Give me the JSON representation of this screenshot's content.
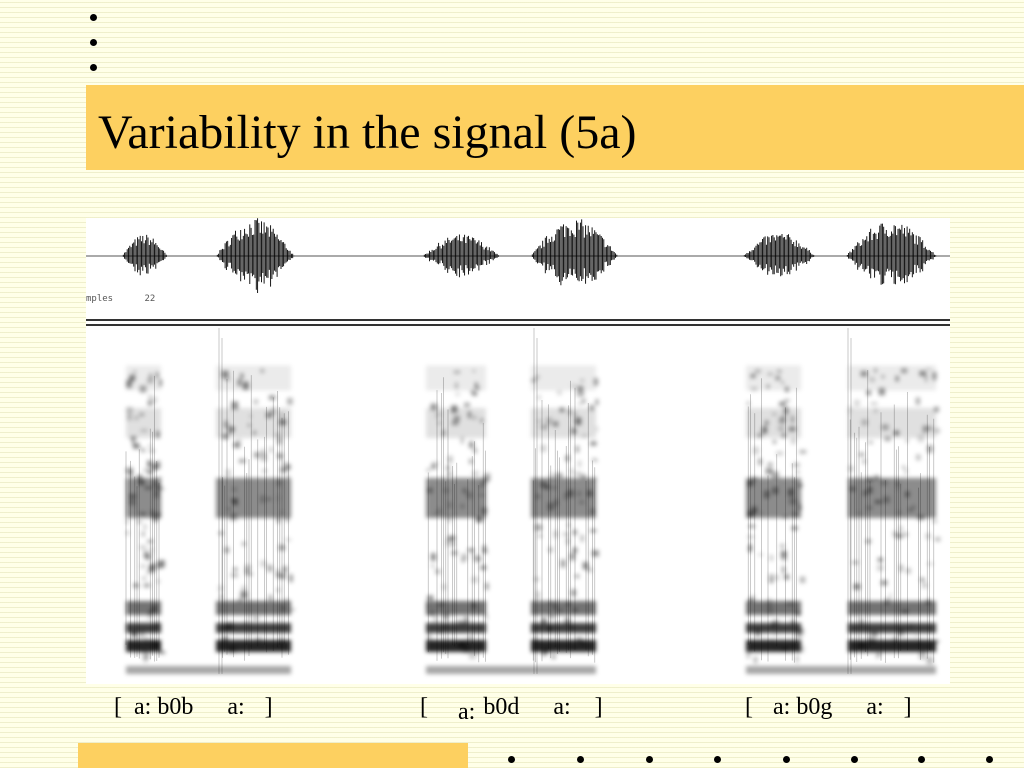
{
  "slide": {
    "title": "Variability in the signal (5a)",
    "figure": {
      "samples_label": "mples",
      "samples_value": "22"
    },
    "transcriptions": [
      {
        "open": "[",
        "part1": "a: b0b",
        "part2": "a:",
        "close": "]"
      },
      {
        "open": "[",
        "part1": "a:",
        "part1b": "b0d",
        "part2": "a:",
        "close": "]"
      },
      {
        "open": "[",
        "part1": "a: b0g",
        "part2": "a:",
        "close": "]"
      }
    ],
    "colors": {
      "accent": "#fdd060",
      "background": "#ffffe8"
    }
  }
}
